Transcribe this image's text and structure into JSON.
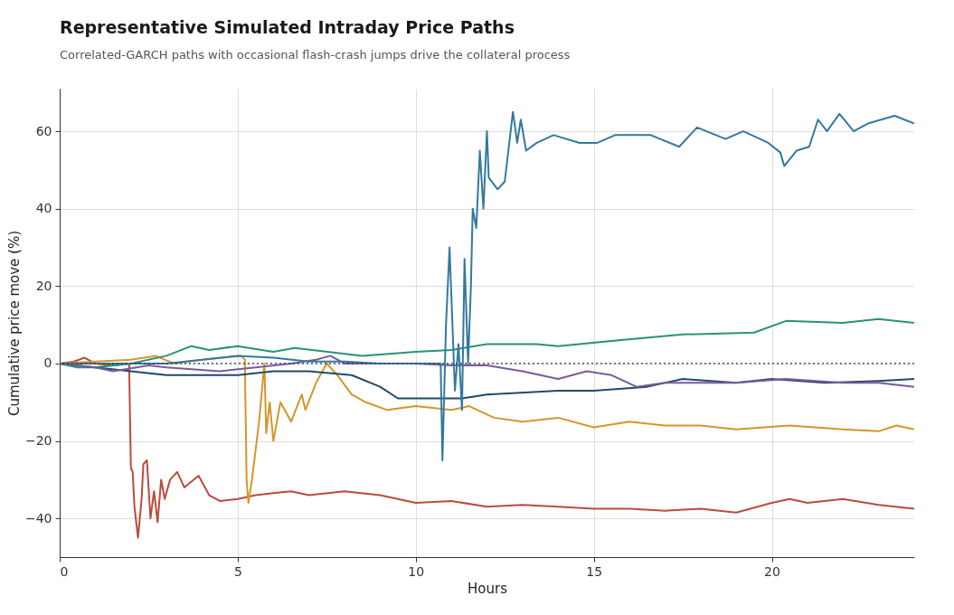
{
  "chart_data": {
    "type": "line",
    "title": "Representative Simulated Intraday Price Paths",
    "subtitle": "Correlated-GARCH paths with occasional flash-crash jumps drive the collateral process",
    "xlabel": "Hours",
    "ylabel": "Cumulative price move (%)",
    "xlim": [
      0,
      24
    ],
    "xticks": [
      0,
      5,
      10,
      15,
      20
    ],
    "ylim": [
      -50,
      71
    ],
    "yticks": [
      -40,
      -20,
      0,
      20,
      40,
      60
    ],
    "grid": true,
    "legend": false,
    "marker": "none",
    "line_style": "solid",
    "ref_lines": [
      {
        "axis": "y",
        "value": 0,
        "color": "#333333",
        "line_style": "dotted"
      }
    ],
    "series": [
      {
        "color": "#b94c3c",
        "x": [
          0,
          0.4,
          0.7,
          1,
          1.5,
          1.95,
          2.0,
          2.05,
          2.1,
          2.2,
          2.3,
          2.35,
          2.45,
          2.55,
          2.65,
          2.75,
          2.85,
          2.95,
          3.1,
          3.3,
          3.5,
          3.9,
          4.2,
          4.5,
          5,
          5.5,
          6,
          6.5,
          7,
          8,
          9,
          10,
          11,
          12,
          13,
          14,
          15,
          16,
          17,
          18,
          19,
          20,
          20.5,
          21,
          22,
          23,
          24
        ],
        "values": [
          0,
          0.5,
          1.5,
          0,
          -0.5,
          0,
          -27,
          -28,
          -37,
          -45,
          -35,
          -26,
          -25,
          -40,
          -33,
          -41,
          -30,
          -35,
          -30,
          -28,
          -32,
          -29,
          -34,
          -35.5,
          -35,
          -34,
          -33.5,
          -33,
          -34,
          -33,
          -34,
          -36,
          -35.5,
          -37,
          -36.5,
          -37,
          -37.5,
          -37.5,
          -38,
          -37.5,
          -38.5,
          -36,
          -35,
          -36,
          -35,
          -36.5,
          -37.5
        ]
      },
      {
        "color": "#d4962a",
        "x": [
          0,
          1,
          2,
          2.7,
          3.2,
          4,
          5.1,
          5.2,
          5.25,
          5.3,
          5.4,
          5.6,
          5.75,
          5.8,
          5.9,
          6,
          6.2,
          6.5,
          6.8,
          6.9,
          7.2,
          7.5,
          7.8,
          8.2,
          8.6,
          9.2,
          10,
          11,
          11.5,
          12.2,
          13,
          14,
          15,
          16,
          17,
          18,
          19,
          20.5,
          22,
          23,
          23.5,
          24
        ],
        "values": [
          0,
          0.5,
          1,
          2,
          0,
          1,
          2,
          1,
          -30,
          -36,
          -30,
          -15,
          0,
          -18,
          -10,
          -20,
          -10,
          -15,
          -8,
          -12,
          -5,
          0,
          -3,
          -8,
          -10,
          -12,
          -11,
          -12,
          -11,
          -14,
          -15,
          -14,
          -16.5,
          -15,
          -16,
          -16,
          -17,
          -16,
          -17,
          -17.5,
          -16,
          -17
        ]
      },
      {
        "color": "#2a9178",
        "x": [
          0,
          0.5,
          1,
          2,
          3,
          3.7,
          4.2,
          5,
          6,
          6.6,
          8.5,
          10,
          11,
          12,
          13.4,
          14,
          15.7,
          17.5,
          19.5,
          20.4,
          22,
          23,
          24
        ],
        "values": [
          0,
          -1,
          -1,
          0,
          2,
          4.5,
          3.5,
          4.5,
          3,
          4,
          2,
          3,
          3.5,
          5,
          5,
          4.5,
          6,
          7.5,
          8,
          11,
          10.5,
          11.5,
          10.5
        ]
      },
      {
        "color": "#1f4a6b",
        "x": [
          0,
          1,
          2,
          3,
          5,
          6,
          7,
          8.2,
          9,
          9.5,
          11.3,
          12,
          14,
          15,
          16.5,
          17.5,
          19,
          20,
          21.5,
          23,
          24
        ],
        "values": [
          0,
          -1,
          -2,
          -3,
          -3,
          -2,
          -2,
          -3,
          -6,
          -9,
          -9,
          -8,
          -7,
          -7,
          -6,
          -4,
          -5,
          -4,
          -5,
          -4.5,
          -4
        ]
      },
      {
        "color": "#7b5a9b",
        "x": [
          0,
          1,
          1.5,
          2.5,
          3,
          4.5,
          5.5,
          6.5,
          7.2,
          7.6,
          8,
          10,
          11,
          12,
          13,
          14,
          14.8,
          15.5,
          16.2,
          17,
          19,
          20.4,
          22,
          23,
          24
        ],
        "values": [
          0,
          -1,
          -2,
          -0.5,
          -1,
          -2,
          -1,
          0,
          1,
          2,
          0,
          0,
          -0.5,
          -0.5,
          -2,
          -4,
          -2,
          -3,
          -6,
          -5,
          -5,
          -4,
          -5,
          -5,
          -6
        ]
      },
      {
        "color": "#33799f",
        "x": [
          0,
          3,
          5,
          6,
          7,
          8,
          9,
          10,
          10.7,
          10.75,
          10.85,
          10.95,
          11.1,
          11.2,
          11.3,
          11.37,
          11.47,
          11.55,
          11.6,
          11.7,
          11.8,
          11.9,
          12.0,
          12.05,
          12.3,
          12.5,
          12.73,
          12.85,
          12.95,
          13.1,
          13.4,
          13.87,
          14.6,
          15.1,
          15.6,
          16.6,
          17.4,
          17.9,
          18.7,
          19.2,
          19.9,
          20.24,
          20.35,
          20.7,
          21.05,
          21.3,
          21.55,
          21.9,
          22.3,
          22.7,
          23.45,
          24
        ],
        "values": [
          0,
          0,
          2,
          1.5,
          0.5,
          0.5,
          0,
          0,
          0,
          -25,
          10,
          30,
          -7,
          5,
          -12,
          27,
          0,
          20,
          40,
          35,
          55,
          40,
          60,
          48,
          45,
          47,
          65,
          57,
          63,
          55,
          57,
          59,
          57,
          57,
          59,
          59,
          56,
          61,
          58,
          60,
          57,
          54.5,
          51,
          55,
          56,
          63,
          60,
          64.5,
          60,
          62,
          64,
          62
        ]
      }
    ]
  }
}
